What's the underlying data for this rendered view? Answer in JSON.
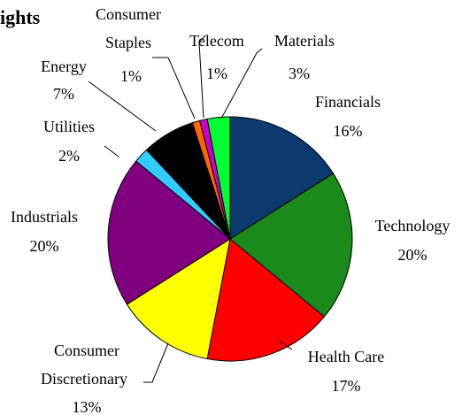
{
  "chart_data": {
    "type": "pie",
    "title": "ights",
    "categories": [
      "Financials",
      "Technology",
      "Health Care",
      "Consumer Discretionary",
      "Industrials",
      "Utilities",
      "Energy",
      "Consumer Staples",
      "Telecom",
      "Materials"
    ],
    "values": [
      16,
      20,
      17,
      13,
      20,
      2,
      7,
      1,
      1,
      3
    ],
    "value_labels": [
      "16%",
      "20%",
      "17%",
      "13%",
      "20%",
      "2%",
      "7%",
      "1%",
      "1%",
      "3%"
    ],
    "colors": [
      "#0b3a6e",
      "#1a8a1a",
      "#ff0000",
      "#ffff00",
      "#800080",
      "#33ccff",
      "#000000",
      "#ff6600",
      "#cc00cc",
      "#00ff33"
    ]
  }
}
